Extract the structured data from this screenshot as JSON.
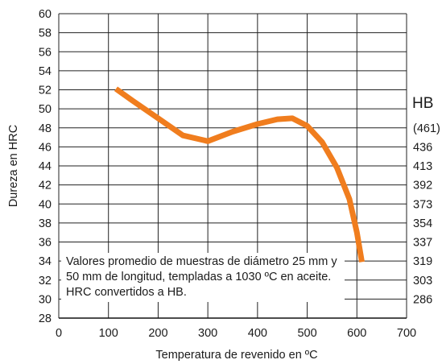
{
  "chart_data": {
    "type": "line",
    "xlabel": "Temperatura de revenido en ºC",
    "ylabel": "Dureza en HRC",
    "secondary_axis_title": "HB",
    "xlim": [
      0,
      700
    ],
    "ylim": [
      28,
      60
    ],
    "x_ticks": [
      0,
      100,
      200,
      300,
      400,
      500,
      600,
      700
    ],
    "y_ticks": [
      28,
      30,
      32,
      34,
      36,
      38,
      40,
      42,
      44,
      46,
      48,
      50,
      52,
      54,
      56,
      58,
      60
    ],
    "secondary_ticks": [
      {
        "hrc": 48,
        "label": "(461)"
      },
      {
        "hrc": 46,
        "label": "436"
      },
      {
        "hrc": 44,
        "label": "413"
      },
      {
        "hrc": 42,
        "label": "392"
      },
      {
        "hrc": 40,
        "label": "373"
      },
      {
        "hrc": 38,
        "label": "354"
      },
      {
        "hrc": 36,
        "label": "337"
      },
      {
        "hrc": 34,
        "label": "319"
      },
      {
        "hrc": 32,
        "label": "303"
      },
      {
        "hrc": 30,
        "label": "286"
      }
    ],
    "grid": true,
    "series": [
      {
        "color": "#f07d1e",
        "points": [
          [
            115,
            52.1
          ],
          [
            150,
            50.8
          ],
          [
            200,
            49.0
          ],
          [
            250,
            47.2
          ],
          [
            300,
            46.6
          ],
          [
            350,
            47.6
          ],
          [
            400,
            48.4
          ],
          [
            440,
            48.9
          ],
          [
            470,
            49.0
          ],
          [
            500,
            48.2
          ],
          [
            530,
            46.5
          ],
          [
            560,
            43.8
          ],
          [
            585,
            40.5
          ],
          [
            600,
            37.0
          ],
          [
            610,
            33.9
          ]
        ]
      }
    ],
    "annotation": "Valores promedio de muestras de diámetro 25 mm y 50 mm de longitud, templadas a 1030 ºC en aceite. HRC convertidos a HB."
  }
}
